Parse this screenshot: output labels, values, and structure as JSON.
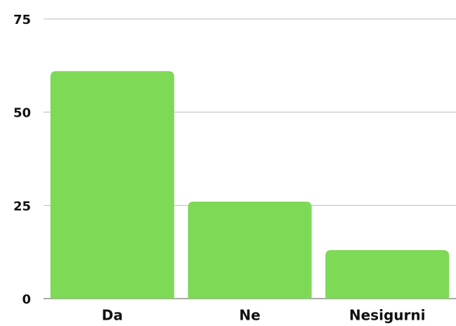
{
  "chart_data": {
    "type": "bar",
    "categories": [
      "Da",
      "Ne",
      "Nesigurni"
    ],
    "values": [
      61,
      26,
      13
    ],
    "color": "#7ed957",
    "ylim": [
      0,
      75
    ],
    "yticks": [
      0,
      25,
      50,
      75
    ],
    "grid": true
  }
}
